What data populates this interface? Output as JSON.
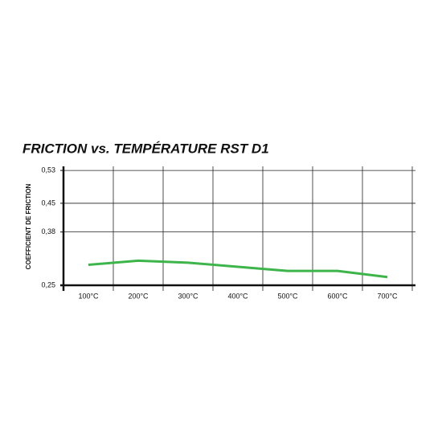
{
  "chart_data": {
    "type": "line",
    "title": "FRICTION vs. TEMPÉRATURE RST D1",
    "y_label": "COEFFICIENT DE FRICTION",
    "categories": [
      "100°C",
      "200°C",
      "300°C",
      "400°C",
      "500°C",
      "600°C",
      "700°C"
    ],
    "series": [
      {
        "name": "RST D1",
        "color": "#3db54a",
        "values": [
          0.3,
          0.31,
          0.305,
          0.295,
          0.285,
          0.285,
          0.27
        ]
      }
    ],
    "ylim": [
      0.25,
      0.54
    ],
    "yticks": [
      {
        "value": 0.25,
        "label": "0,25"
      },
      {
        "value": 0.38,
        "label": "0,38"
      },
      {
        "value": 0.45,
        "label": "0,45"
      },
      {
        "value": 0.53,
        "label": "0,53"
      }
    ],
    "grid": true
  }
}
